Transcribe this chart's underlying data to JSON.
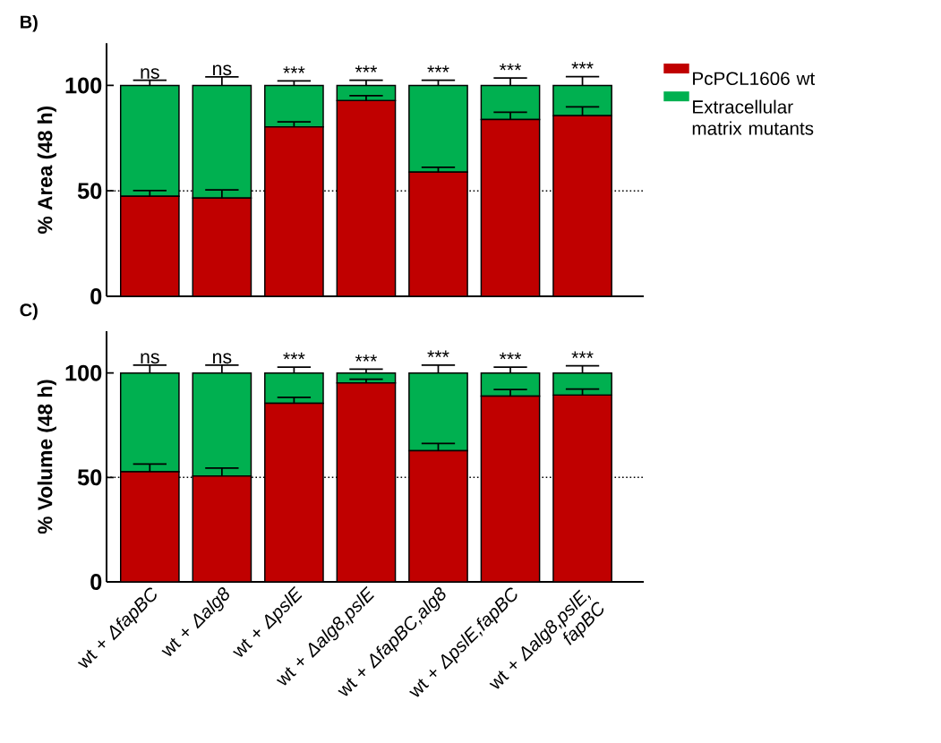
{
  "chart_data": [
    {
      "type": "bar",
      "title": "B)",
      "ylabel": "% Area (48 h)",
      "stacked": true,
      "legend": "right",
      "tick_labels": "y",
      "categories": [
        null,
        null,
        null,
        null,
        null,
        null,
        null
      ],
      "series": [
        {
          "name": "PcPCL1606 wt",
          "color": "#c00000",
          "values": [
            47.4,
            46.6,
            80.3,
            92.8,
            58.9,
            83.8,
            85.6
          ],
          "errors": [
            2.7,
            3.9,
            2.4,
            2.3,
            2.3,
            3.5,
            4.2
          ]
        },
        {
          "name": "Extracellular matrix mutants",
          "color": "#00b050",
          "values": [
            52.6,
            53.4,
            19.7,
            7.2,
            41.1,
            16.2,
            14.4
          ],
          "errors": [
            2.5,
            4.1,
            2.1,
            2.5,
            2.5,
            3.5,
            4.2
          ]
        }
      ],
      "ylim": [
        0,
        120
      ],
      "yticks": [
        0,
        50,
        100
      ],
      "ref_lines": [
        {
          "axis": "y",
          "value": 50,
          "line_style": "dotted",
          "color": "#000000"
        }
      ],
      "annotations": [
        {
          "text": "ns",
          "y": 102.5
        },
        {
          "text": "ns",
          "y": 104.1
        },
        {
          "text": "***",
          "y": 102.1
        },
        {
          "text": "***",
          "y": 102.5
        },
        {
          "text": "***",
          "y": 102.5
        },
        {
          "text": "***",
          "y": 103.5
        },
        {
          "text": "***",
          "y": 104.2
        }
      ]
    },
    {
      "type": "bar",
      "title": "C)",
      "ylabel": "% Volume (48 h)",
      "stacked": true,
      "categories": [
        "wt + *ΔfapBC*",
        "wt + *Δalg8*",
        "wt + *ΔpslE*",
        "wt + *Δalg8,pslE*",
        "wt + *ΔfapBC,alg8*",
        "wt + *ΔpslE,fapBC*",
        "wt + *Δalg8,pslE,*\n*fapBC*"
      ],
      "series": [
        {
          "color": "#c00000",
          "values": [
            52.7,
            50.7,
            85.5,
            95.2,
            62.8,
            88.9,
            89.4
          ],
          "errors": [
            3.7,
            3.8,
            2.8,
            1.8,
            3.5,
            3.2,
            2.9
          ]
        },
        {
          "color": "#00b050",
          "values": [
            47.3,
            49.3,
            14.5,
            4.8,
            37.2,
            11.1,
            10.6
          ],
          "errors": [
            3.8,
            3.8,
            2.8,
            1.8,
            3.8,
            2.8,
            3.4
          ]
        }
      ],
      "ylim": [
        0,
        120
      ],
      "yticks": [
        0,
        50,
        100
      ],
      "ref_lines": [
        {
          "axis": "y",
          "value": 50,
          "line_style": "dotted",
          "color": "#000000"
        }
      ],
      "annotations": [
        {
          "text": "ns",
          "x": "wt + *ΔfapBC*",
          "y": 103.8
        },
        {
          "text": "ns",
          "x": "wt + *Δalg8*",
          "y": 103.8
        },
        {
          "text": "***",
          "x": "wt + *ΔpslE*",
          "y": 102.8
        },
        {
          "text": "***",
          "x": "wt + *Δalg8,pslE*",
          "y": 101.8
        },
        {
          "text": "***",
          "x": "wt + *ΔfapBC,alg8*",
          "y": 103.8
        },
        {
          "text": "***",
          "x": "wt + *ΔpslE,fapBC*",
          "y": 102.8
        },
        {
          "text": "***",
          "x": "wt + *Δalg8,pslE,*\n*fapBC*",
          "y": 103.4
        }
      ]
    }
  ]
}
